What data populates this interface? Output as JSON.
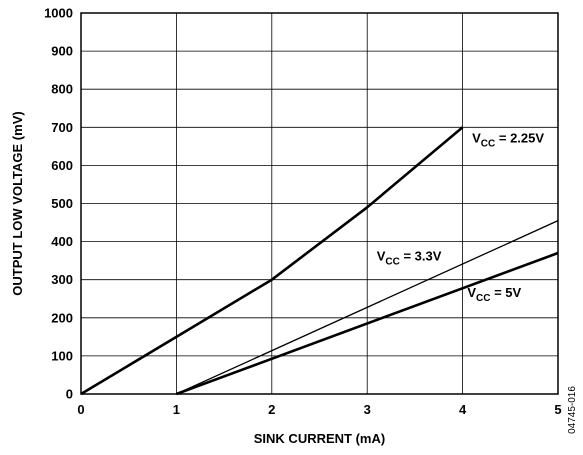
{
  "chart_data": {
    "type": "line",
    "xlabel": "SINK CURRENT (mA)",
    "ylabel": "OUTPUT LOW VOLTAGE (mV)",
    "xlim": [
      0,
      5
    ],
    "ylim": [
      0,
      1000
    ],
    "x_ticks": [
      "0",
      "1",
      "2",
      "3",
      "4",
      "5"
    ],
    "y_ticks": [
      "0",
      "100",
      "200",
      "300",
      "400",
      "500",
      "600",
      "700",
      "800",
      "900",
      "1000"
    ],
    "grid": true,
    "series": [
      {
        "label_main": "V",
        "label_sub": "CC",
        "label_rest": " = 2.25V",
        "x": [
          0,
          1,
          2,
          3,
          4
        ],
        "y": [
          0,
          150,
          300,
          490,
          700
        ],
        "line_weight": "heavy",
        "label_at": [
          4.1,
          660
        ]
      },
      {
        "label_main": "V",
        "label_sub": "CC",
        "label_rest": " = 3.3V",
        "x": [
          1,
          5
        ],
        "y": [
          0,
          455
        ],
        "line_weight": "thin",
        "label_at": [
          3.1,
          350
        ]
      },
      {
        "label_main": "V",
        "label_sub": "CC",
        "label_rest": " = 5V",
        "x": [
          1,
          5
        ],
        "y": [
          0,
          370
        ],
        "line_weight": "heavy",
        "label_at": [
          4.05,
          255
        ]
      }
    ],
    "code": "04745-016",
    "colors": {
      "line": "#000000",
      "grid": "#000000"
    }
  }
}
